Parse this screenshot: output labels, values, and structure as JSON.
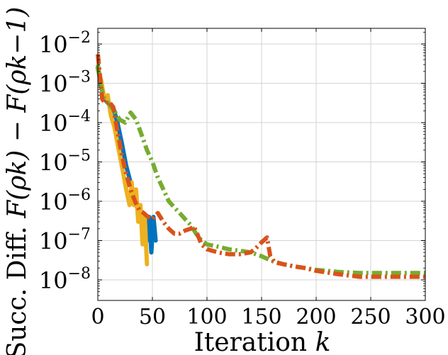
{
  "chart_data": {
    "type": "line",
    "xlabel": "Iteration k",
    "ylabel": "Succ. Diff. F(ρ_k) − F(ρ_{k−1})",
    "xlabel_parts": {
      "text": "Iteration ",
      "var": "k"
    },
    "ylabel_parts": {
      "text": "Succ. Diff. ",
      "formula": "F(ρk) − F(ρk−1)"
    },
    "y_scale": "log",
    "xlim": [
      0,
      300
    ],
    "ylim": [
      3e-09,
      0.025
    ],
    "grid": true,
    "x_ticks": [
      {
        "value": 0,
        "label": "0"
      },
      {
        "value": 50,
        "label": "50"
      },
      {
        "value": 100,
        "label": "100"
      },
      {
        "value": 150,
        "label": "150"
      },
      {
        "value": 200,
        "label": "200"
      },
      {
        "value": 250,
        "label": "250"
      },
      {
        "value": 300,
        "label": "300"
      }
    ],
    "y_ticks": [
      {
        "value": 1e-08,
        "base": "10",
        "exp": "−8"
      },
      {
        "value": 1e-07,
        "base": "10",
        "exp": "−7"
      },
      {
        "value": 1e-06,
        "base": "10",
        "exp": "−6"
      },
      {
        "value": 1e-05,
        "base": "10",
        "exp": "−5"
      },
      {
        "value": 0.0001,
        "base": "10",
        "exp": "−4"
      },
      {
        "value": 0.001,
        "base": "10",
        "exp": "−3"
      },
      {
        "value": 0.01,
        "base": "10",
        "exp": "−2"
      }
    ],
    "series": [
      {
        "color": "#0072BD",
        "dash": "solid",
        "width": 6,
        "x": [
          0,
          3,
          6,
          10,
          14,
          18,
          22,
          26,
          30,
          34,
          38,
          42,
          45,
          47,
          49,
          51,
          53
        ],
        "y": [
          0.0025,
          0.0009,
          0.0004,
          0.0003,
          0.00025,
          0.0001,
          3e-05,
          8e-06,
          3e-06,
          1.2e-06,
          4e-07,
          3e-07,
          1e-07,
          4e-07,
          5e-08,
          4e-07,
          1e-07
        ]
      },
      {
        "color": "#EDB120",
        "dash": "solid",
        "width": 6,
        "x": [
          0,
          3,
          6,
          9,
          12,
          15,
          18,
          22,
          26,
          29,
          31,
          33,
          35,
          37,
          39,
          41,
          43,
          45
        ],
        "y": [
          0.0022,
          0.0012,
          0.0004,
          0.0005,
          0.00015,
          8e-05,
          3e-05,
          8e-06,
          2e-06,
          8e-07,
          3e-06,
          8e-07,
          2e-06,
          3e-07,
          8e-07,
          8e-08,
          4e-07,
          2.5e-08
        ]
      },
      {
        "color": "#77AC30",
        "dash": "dashdot",
        "width": 6,
        "x": [
          0,
          3,
          6,
          10,
          15,
          20,
          25,
          30,
          35,
          40,
          45,
          50,
          55,
          60,
          65,
          70,
          75,
          80,
          85,
          90,
          95,
          100,
          110,
          120,
          130,
          140,
          150,
          160,
          170,
          180,
          190,
          200,
          220,
          240,
          260,
          280,
          300
        ],
        "y": [
          0.003,
          0.0008,
          0.0004,
          0.0003,
          0.0002,
          0.00012,
          0.0001,
          0.00018,
          0.00012,
          5e-05,
          2e-05,
          1e-05,
          4e-06,
          2e-06,
          1e-06,
          7e-07,
          5e-07,
          3.5e-07,
          2.5e-07,
          1.5e-07,
          1e-07,
          8e-08,
          7e-08,
          6e-08,
          5.5e-08,
          5e-08,
          4e-08,
          3e-08,
          2.5e-08,
          2.2e-08,
          2e-08,
          1.8e-08,
          1.6e-08,
          1.5e-08,
          1.5e-08,
          1.5e-08,
          1.5e-08
        ]
      },
      {
        "color": "#D95319",
        "dash": "dashdot",
        "width": 6,
        "x": [
          0,
          2,
          4,
          7,
          10,
          14,
          18,
          22,
          26,
          30,
          34,
          38,
          42,
          46,
          50,
          55,
          60,
          65,
          70,
          75,
          80,
          85,
          88,
          91,
          95,
          100,
          110,
          120,
          130,
          140,
          145,
          150,
          155,
          158,
          162,
          170,
          180,
          190,
          200,
          220,
          240,
          260,
          280,
          300
        ],
        "y": [
          0.0055,
          0.0015,
          0.0004,
          0.0003,
          0.00035,
          0.00025,
          6e-05,
          1.5e-05,
          5e-06,
          2e-06,
          1e-06,
          6e-07,
          5e-07,
          4e-07,
          3.5e-07,
          5e-07,
          3e-07,
          2e-07,
          1.5e-07,
          1.5e-07,
          1.8e-07,
          2e-07,
          2.3e-07,
          1.5e-07,
          8e-08,
          6e-08,
          5e-08,
          4.5e-08,
          4.5e-08,
          5e-08,
          6.5e-08,
          9e-08,
          1.2e-07,
          4e-08,
          2.8e-08,
          2.5e-08,
          2.2e-08,
          2e-08,
          1.7e-08,
          1.4e-08,
          1.2e-08,
          1.2e-08,
          1.2e-08,
          1.2e-08
        ]
      }
    ]
  }
}
